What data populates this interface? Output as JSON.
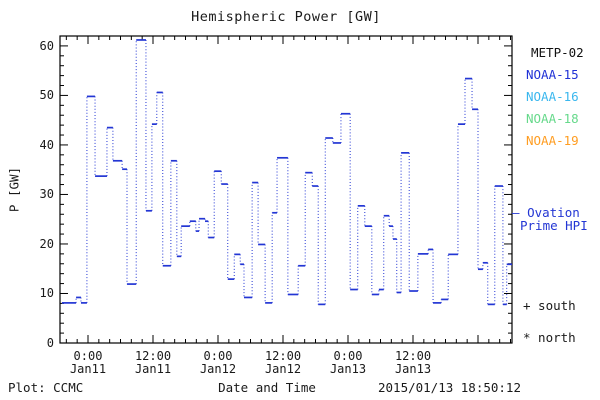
{
  "title": "Hemispheric Power [GW]",
  "axes": {
    "y_label": "P [GW]",
    "x_label": "Date and Time"
  },
  "footer": {
    "left": "Plot: CCMC",
    "right": "2015/01/13 18:50:12"
  },
  "legend": {
    "satellites": [
      {
        "label": "METP-02",
        "color_key": "metp02"
      },
      {
        "label": "NOAA-15",
        "color_key": "noaa15"
      },
      {
        "label": "NOAA-16",
        "color_key": "noaa16"
      },
      {
        "label": "NOAA-18",
        "color_key": "noaa18"
      },
      {
        "label": "NOAA-19",
        "color_key": "noaa19"
      }
    ],
    "line_sample": "—",
    "line_label_1": "Ovation",
    "line_label_2": "Prime HPI",
    "marker_south": "+ south",
    "marker_north": "* north"
  },
  "colors": {
    "background": "#ffffff",
    "axis": "#000000",
    "text": "#1a1a1a",
    "line": "#2336d4",
    "metp02": "#111111",
    "noaa15": "#2132d6",
    "noaa16": "#3ab7ee",
    "noaa18": "#66d98b",
    "noaa19": "#ff9d22"
  },
  "chart_data": {
    "type": "line",
    "style": "step-dotted",
    "title": "Hemispheric Power [GW]",
    "xlabel": "Date and Time",
    "ylabel": "P [GW]",
    "ylim": [
      0,
      62
    ],
    "y_major_ticks": [
      0,
      10,
      20,
      30,
      40,
      50,
      60
    ],
    "y_minor_step": 2,
    "x_hours_range": [
      -4.8,
      78.3
    ],
    "x_minor_step_hours": 2,
    "x_major_ticks": [
      {
        "hour": 0,
        "time": "0:00",
        "date": "Jan11"
      },
      {
        "hour": 12,
        "time": "12:00",
        "date": "Jan11"
      },
      {
        "hour": 24,
        "time": "0:00",
        "date": "Jan12"
      },
      {
        "hour": 36,
        "time": "12:00",
        "date": "Jan12"
      },
      {
        "hour": 48,
        "time": "0:00",
        "date": "Jan13"
      },
      {
        "hour": 60,
        "time": "12:00",
        "date": "Jan13"
      },
      {
        "hour": 72,
        "time": "",
        "date": ""
      }
    ],
    "series": [
      {
        "name": "Ovation Prime HPI",
        "units": "GW",
        "hours_relative_to": "Jan11 00:00",
        "steps": [
          [
            -4.8,
            8.1
          ],
          [
            -2.2,
            9.2
          ],
          [
            -1.3,
            8.1
          ],
          [
            -0.2,
            49.8
          ],
          [
            1.3,
            33.7
          ],
          [
            3.5,
            43.5
          ],
          [
            4.6,
            36.8
          ],
          [
            6.3,
            35.1
          ],
          [
            7.2,
            11.9
          ],
          [
            8.9,
            61.2
          ],
          [
            10.7,
            26.7
          ],
          [
            11.8,
            44.2
          ],
          [
            12.7,
            50.6
          ],
          [
            13.8,
            15.6
          ],
          [
            15.3,
            36.8
          ],
          [
            16.4,
            17.5
          ],
          [
            17.2,
            23.6
          ],
          [
            18.8,
            24.6
          ],
          [
            19.9,
            22.6
          ],
          [
            20.5,
            25.1
          ],
          [
            21.6,
            24.6
          ],
          [
            22.2,
            21.3
          ],
          [
            23.3,
            34.7
          ],
          [
            24.6,
            32.1
          ],
          [
            25.8,
            12.9
          ],
          [
            27.0,
            17.9
          ],
          [
            28.1,
            15.9
          ],
          [
            28.8,
            9.2
          ],
          [
            30.3,
            32.4
          ],
          [
            31.4,
            19.9
          ],
          [
            32.7,
            8.1
          ],
          [
            34.0,
            26.3
          ],
          [
            34.9,
            37.4
          ],
          [
            36.9,
            9.8
          ],
          [
            38.8,
            15.6
          ],
          [
            40.1,
            34.4
          ],
          [
            41.4,
            31.7
          ],
          [
            42.5,
            7.8
          ],
          [
            43.8,
            41.4
          ],
          [
            45.2,
            40.4
          ],
          [
            46.7,
            46.3
          ],
          [
            48.4,
            10.8
          ],
          [
            49.8,
            27.7
          ],
          [
            51.1,
            23.6
          ],
          [
            52.4,
            9.8
          ],
          [
            53.7,
            10.8
          ],
          [
            54.6,
            25.7
          ],
          [
            55.6,
            23.6
          ],
          [
            56.3,
            21.0
          ],
          [
            57.0,
            10.2
          ],
          [
            57.8,
            38.4
          ],
          [
            59.3,
            10.5
          ],
          [
            60.9,
            18.0
          ],
          [
            62.8,
            18.9
          ],
          [
            63.7,
            8.1
          ],
          [
            65.2,
            8.8
          ],
          [
            66.5,
            17.9
          ],
          [
            68.3,
            44.2
          ],
          [
            69.6,
            53.4
          ],
          [
            70.9,
            47.2
          ],
          [
            72.0,
            14.9
          ],
          [
            72.9,
            16.2
          ],
          [
            73.8,
            7.8
          ],
          [
            75.1,
            31.7
          ],
          [
            76.6,
            7.8
          ],
          [
            77.3,
            15.9
          ]
        ],
        "t_end": 78.3
      }
    ],
    "legend_entries": [
      "METP-02",
      "NOAA-15",
      "NOAA-16",
      "NOAA-18",
      "NOAA-19",
      "Ovation Prime HPI",
      "+ south",
      "* north"
    ],
    "grid": false,
    "legend_position": "right-outside"
  }
}
